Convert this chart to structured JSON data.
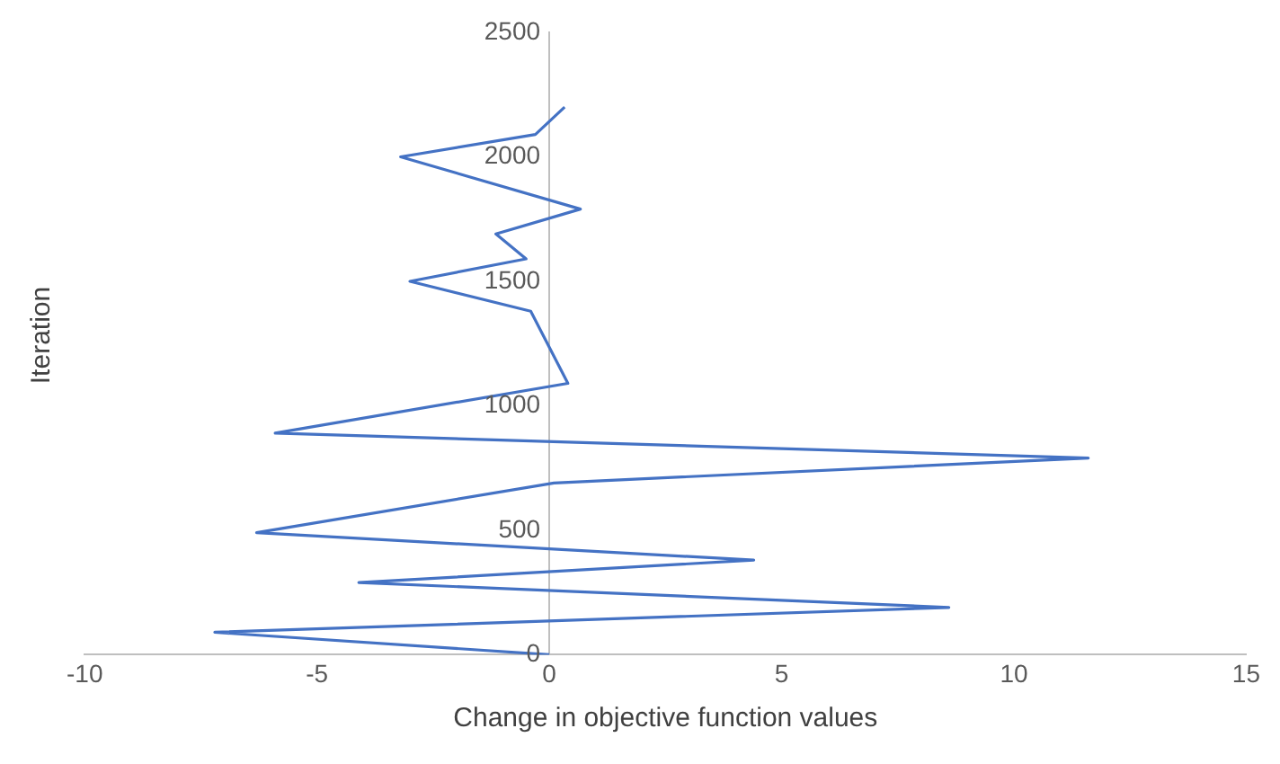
{
  "chart_data": {
    "type": "line",
    "xlabel": "Change in objective function values",
    "ylabel": "Iteration",
    "series": [
      {
        "color": "#4472c4",
        "x": [
          0,
          -7.2,
          8.6,
          -4.1,
          4.4,
          -6.3,
          0.1,
          11.6,
          -5.9,
          0.4,
          -0.4,
          -3.0,
          -0.5,
          -1.15,
          0.67,
          -3.2,
          -0.3,
          0.33
        ],
        "values": [
          0,
          90,
          190,
          290,
          380,
          490,
          690,
          790,
          890,
          1090,
          1380,
          1500,
          1590,
          1690,
          1790,
          2000,
          2090,
          2200
        ]
      }
    ],
    "xlim": [
      -10,
      15
    ],
    "xticks": [
      -10,
      -5,
      0,
      5,
      10,
      15
    ],
    "ylim": [
      0,
      2500
    ],
    "yticks": [
      0,
      500,
      1000,
      1500,
      2000,
      2500
    ],
    "grid": false,
    "legend": false,
    "marker": "none",
    "line_style": "solid"
  }
}
